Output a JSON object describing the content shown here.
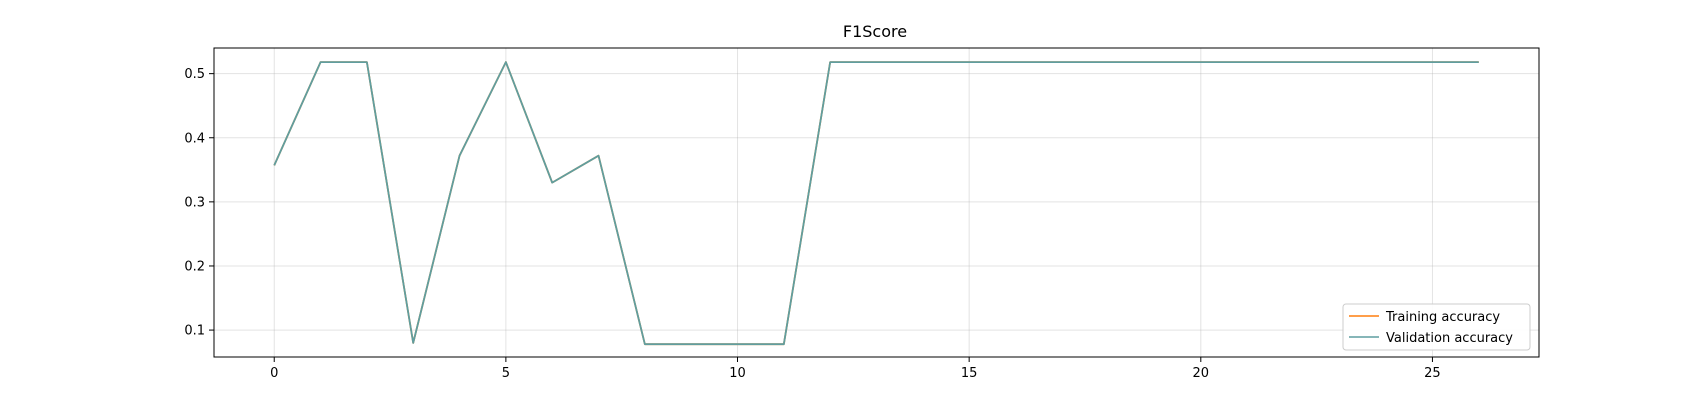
{
  "chart_data": {
    "type": "line",
    "title": "F1Score",
    "xlabel": "",
    "ylabel": "",
    "xlim": [
      -1.3,
      27.3
    ],
    "ylim": [
      0.058,
      0.54
    ],
    "xticks": [
      0,
      5,
      10,
      15,
      20,
      25
    ],
    "yticks": [
      0.1,
      0.2,
      0.3,
      0.4,
      0.5
    ],
    "grid": true,
    "legend_position": "lower-right",
    "x": [
      0,
      1,
      2,
      3,
      4,
      5,
      6,
      7,
      8,
      9,
      10,
      11,
      12,
      13,
      14,
      15,
      16,
      17,
      18,
      19,
      20,
      21,
      22,
      23,
      24,
      25,
      26
    ],
    "series": [
      {
        "name": "Training accuracy",
        "color": "#ff7f0e",
        "values": [
          0.357,
          0.518,
          0.518,
          0.08,
          0.372,
          0.518,
          0.33,
          0.372,
          0.078,
          0.078,
          0.078,
          0.078,
          0.518,
          0.518,
          0.518,
          0.518,
          0.518,
          0.518,
          0.518,
          0.518,
          0.518,
          0.518,
          0.518,
          0.518,
          0.518,
          0.518,
          0.518
        ]
      },
      {
        "name": "Validation accuracy",
        "color": "#5f9ea0",
        "values": [
          0.357,
          0.518,
          0.518,
          0.08,
          0.372,
          0.518,
          0.33,
          0.372,
          0.078,
          0.078,
          0.078,
          0.078,
          0.518,
          0.518,
          0.518,
          0.518,
          0.518,
          0.518,
          0.518,
          0.518,
          0.518,
          0.518,
          0.518,
          0.518,
          0.518,
          0.518,
          0.518
        ]
      }
    ]
  }
}
